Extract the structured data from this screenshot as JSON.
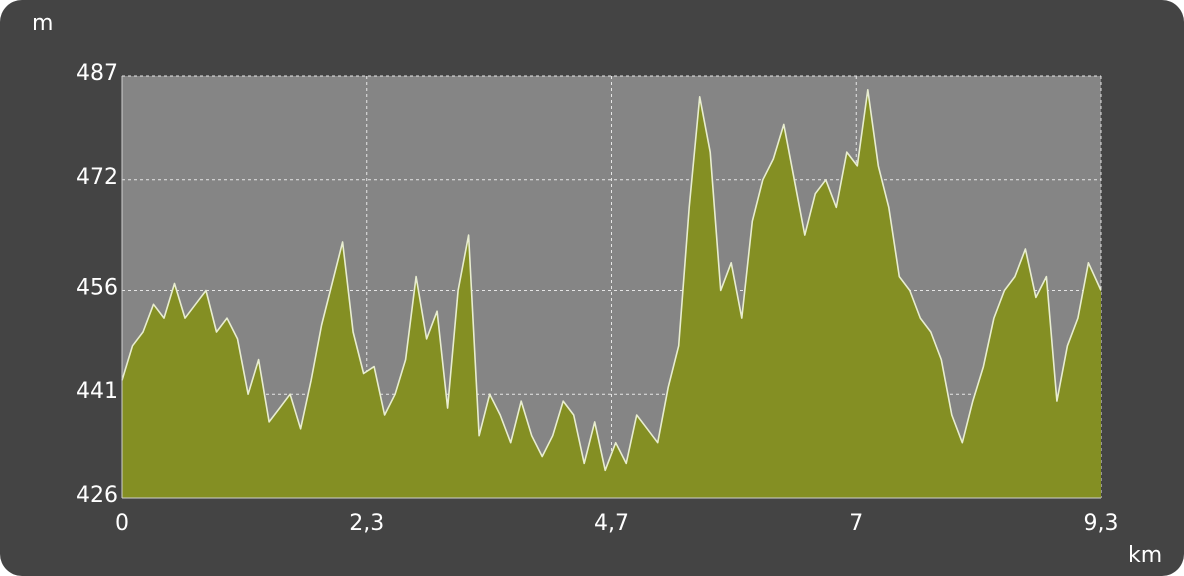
{
  "chart_data": {
    "type": "area",
    "xlabel": "km",
    "ylabel": "m",
    "x_ticks": [
      {
        "value": 0,
        "label": "0"
      },
      {
        "value": 2.33,
        "label": "2,3"
      },
      {
        "value": 4.66,
        "label": "4,7"
      },
      {
        "value": 6.99,
        "label": "7"
      },
      {
        "value": 9.32,
        "label": "9,3"
      }
    ],
    "y_ticks": [
      {
        "value": 426,
        "label": "426"
      },
      {
        "value": 441,
        "label": "441"
      },
      {
        "value": 456,
        "label": "456"
      },
      {
        "value": 472,
        "label": "472"
      },
      {
        "value": 487,
        "label": "487"
      }
    ],
    "xlim": [
      0,
      9.32
    ],
    "ylim": [
      426,
      487
    ],
    "grid": true,
    "colors": {
      "fill": "#848f23",
      "line": "#e8edd0",
      "plot_bg": "#858585",
      "frame": "#444444",
      "grid": "#e6e6e6"
    },
    "series": [
      {
        "x": [
          0,
          0.1,
          0.2,
          0.3,
          0.4,
          0.5,
          0.6,
          0.7,
          0.8,
          0.9,
          1.0,
          1.1,
          1.2,
          1.3,
          1.4,
          1.5,
          1.6,
          1.7,
          1.8,
          1.9,
          2.0,
          2.1,
          2.2,
          2.3,
          2.4,
          2.5,
          2.6,
          2.7,
          2.8,
          2.9,
          3.0,
          3.1,
          3.2,
          3.3,
          3.4,
          3.5,
          3.6,
          3.7,
          3.8,
          3.9,
          4.0,
          4.1,
          4.2,
          4.3,
          4.4,
          4.5,
          4.6,
          4.7,
          4.8,
          4.9,
          5.0,
          5.1,
          5.2,
          5.3,
          5.4,
          5.5,
          5.6,
          5.7,
          5.8,
          5.9,
          6.0,
          6.1,
          6.2,
          6.3,
          6.4,
          6.5,
          6.6,
          6.7,
          6.8,
          6.9,
          7.0,
          7.1,
          7.2,
          7.3,
          7.4,
          7.5,
          7.6,
          7.7,
          7.8,
          7.9,
          8.0,
          8.1,
          8.2,
          8.3,
          8.4,
          8.5,
          8.6,
          8.7,
          8.8,
          8.9,
          9.0,
          9.1,
          9.2,
          9.32
        ],
        "y": [
          443,
          448,
          450,
          454,
          452,
          457,
          452,
          454,
          456,
          450,
          452,
          449,
          441,
          446,
          437,
          439,
          441,
          436,
          443,
          451,
          457,
          463,
          450,
          444,
          445,
          438,
          441,
          446,
          458,
          449,
          453,
          439,
          456,
          464,
          435,
          441,
          438,
          434,
          440,
          435,
          432,
          435,
          440,
          438,
          431,
          437,
          430,
          434,
          431,
          438,
          436,
          434,
          442,
          448,
          468,
          484,
          476,
          456,
          460,
          452,
          466,
          472,
          475,
          480,
          472,
          464,
          470,
          472,
          468,
          476,
          474,
          485,
          474,
          468,
          458,
          456,
          452,
          450,
          446,
          438,
          434,
          440,
          445,
          452,
          456,
          458,
          462,
          455,
          458,
          440,
          448,
          452,
          460,
          456
        ]
      }
    ]
  }
}
